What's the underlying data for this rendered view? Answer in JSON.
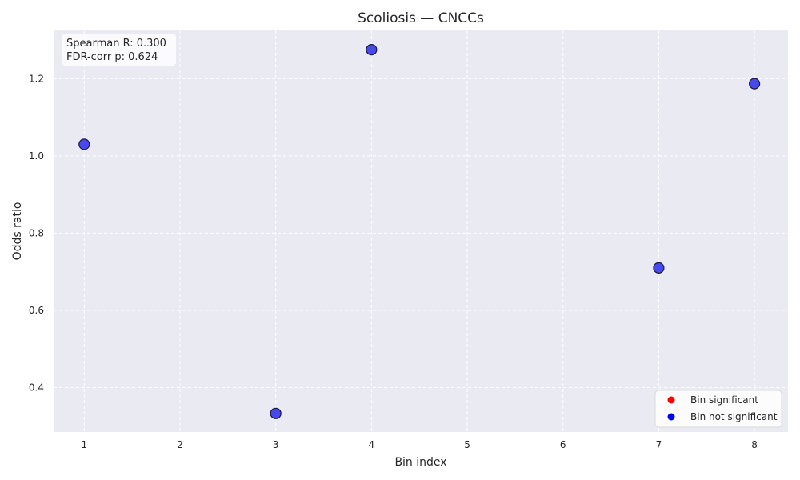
{
  "chart_data": {
    "type": "scatter",
    "title": "Scoliosis — CNCCs",
    "xlabel": "Bin index",
    "ylabel": "Odds ratio",
    "xlim": [
      0.68,
      8.35
    ],
    "ylim": [
      0.285,
      1.325
    ],
    "xticks": [
      1,
      2,
      3,
      4,
      5,
      6,
      7,
      8
    ],
    "yticks": [
      0.4,
      0.6,
      0.8,
      1.0,
      1.2
    ],
    "ytick_labels": [
      "0.4",
      "0.6",
      "0.8",
      "1.0",
      "1.2"
    ],
    "grid": true,
    "series": [
      {
        "name": "Bin not significant",
        "color": "#0000ff",
        "points": [
          {
            "x": 1,
            "y": 1.03
          },
          {
            "x": 3,
            "y": 0.333
          },
          {
            "x": 4,
            "y": 1.275
          },
          {
            "x": 7,
            "y": 0.71
          },
          {
            "x": 8,
            "y": 1.187
          }
        ]
      }
    ],
    "legend": {
      "position": "lower-right",
      "entries": [
        {
          "label": "Bin significant",
          "color": "#ff0000"
        },
        {
          "label": "Bin not significant",
          "color": "#0000ff"
        }
      ]
    },
    "annotation": {
      "position": "top-left",
      "lines": [
        "Spearman R: 0.300",
        "FDR-corr p: 0.624"
      ]
    },
    "colors": {
      "plot_background": "#eaeaf2",
      "marker_fill": "#2b2bef",
      "marker_edge": "#1a1a3a"
    }
  }
}
